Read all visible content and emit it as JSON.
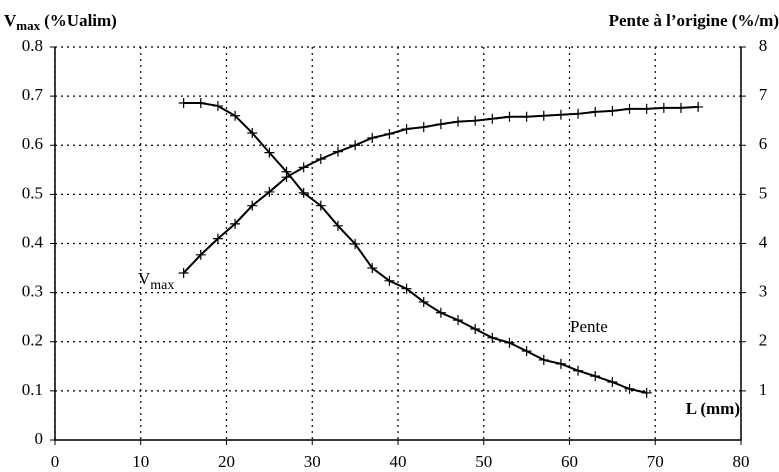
{
  "chart_data": {
    "type": "line",
    "y_label": [
      "V",
      "max",
      "(%Ualim)"
    ],
    "y2_label": "Pente à l’origine (%/m)",
    "x_label": "L (mm)",
    "x": [
      15,
      17,
      19,
      21,
      23,
      25,
      27,
      29,
      31,
      33,
      35,
      37,
      39,
      41,
      43,
      45,
      47,
      49,
      51,
      53,
      55,
      57,
      59,
      61,
      63,
      65,
      67,
      69,
      71,
      73,
      75
    ],
    "series": [
      {
        "label": [
          "V",
          "max"
        ],
        "color": "#000",
        "values": [
          0.34,
          0.377,
          0.41,
          0.44,
          0.477,
          0.505,
          0.535,
          0.555,
          0.572,
          0.587,
          0.6,
          0.615,
          0.623,
          0.633,
          0.637,
          0.643,
          0.648,
          0.65,
          0.654,
          0.658,
          0.658,
          0.66,
          0.662,
          0.664,
          0.668,
          0.67,
          0.674,
          0.674,
          0.676,
          0.676,
          0.678
        ]
      },
      {
        "label": "Pente",
        "color": "#000",
        "axis": "y2",
        "values": [
          6.86,
          6.86,
          6.8,
          6.6,
          6.25,
          5.85,
          5.46,
          5.03,
          4.77,
          4.36,
          3.99,
          3.5,
          3.24,
          3.08,
          2.81,
          2.59,
          2.44,
          2.26,
          2.08,
          1.98,
          1.81,
          1.63,
          1.55,
          1.41,
          1.3,
          1.18,
          1.04,
          0.96,
          null,
          null,
          null
        ]
      }
    ],
    "xlim": [
      0,
      80
    ],
    "xticks": [
      0,
      10,
      20,
      30,
      40,
      50,
      60,
      70,
      80
    ],
    "ylim": [
      0,
      0.8
    ],
    "yticks": [
      0,
      0.1,
      0.2,
      0.3,
      0.4,
      0.5,
      0.6,
      0.7,
      0.8
    ],
    "y2lim": [
      0,
      8
    ],
    "y2ticks": [
      1,
      2,
      3,
      4,
      5,
      6,
      7,
      8
    ],
    "grid": true
  }
}
